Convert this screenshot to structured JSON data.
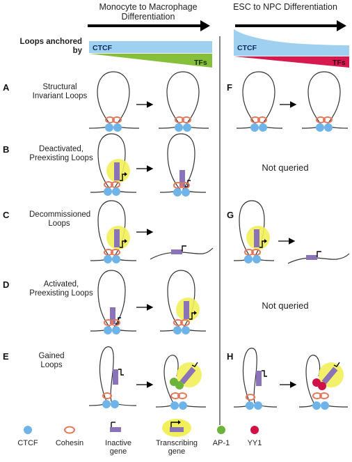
{
  "headers": {
    "left": "Monocyte to Macrophage Differentiation",
    "right": "ESC to NPC Differentiation",
    "loops_anchored_by": "Loops anchored by"
  },
  "bars": {
    "ctcf_label": "CTCF",
    "tfs_label": "TFs",
    "ctcf_color": "#9fd0f0",
    "tf_left_color": "#86bf3a",
    "tf_right_color": "#d7194f"
  },
  "rows": [
    {
      "letter": "A",
      "label": "Structural Invariant Loops"
    },
    {
      "letter": "B",
      "label": "Deactivated, Preexisting Loops"
    },
    {
      "letter": "C",
      "label": "Decommissioned Loops"
    },
    {
      "letter": "D",
      "label": "Activated, Preexisting Loops"
    },
    {
      "letter": "E",
      "label": "Gained Loops"
    }
  ],
  "right_rows": [
    {
      "letter": "F"
    },
    {
      "text": "Not queried"
    },
    {
      "letter": "G"
    },
    {
      "text": "Not queried"
    },
    {
      "letter": "H"
    }
  ],
  "legend": [
    {
      "label": "CTCF",
      "icon": "ctcf-icon"
    },
    {
      "label": "Cohesin",
      "icon": "cohesin-icon"
    },
    {
      "label": "Inactive gene",
      "icon": "inactive-gene-icon"
    },
    {
      "label": "Transcribing gene",
      "icon": "transcribing-gene-icon"
    },
    {
      "label": "AP-1",
      "icon": "ap1-icon"
    },
    {
      "label": "YY1",
      "icon": "yy1-icon"
    }
  ],
  "colors": {
    "ctcf": "#6fb4e8",
    "cohesin": "#e2775a",
    "gene": "#8b73b8",
    "highlight": "#f2f05a",
    "ap1": "#6cb33a",
    "yy1": "#cf1148"
  }
}
